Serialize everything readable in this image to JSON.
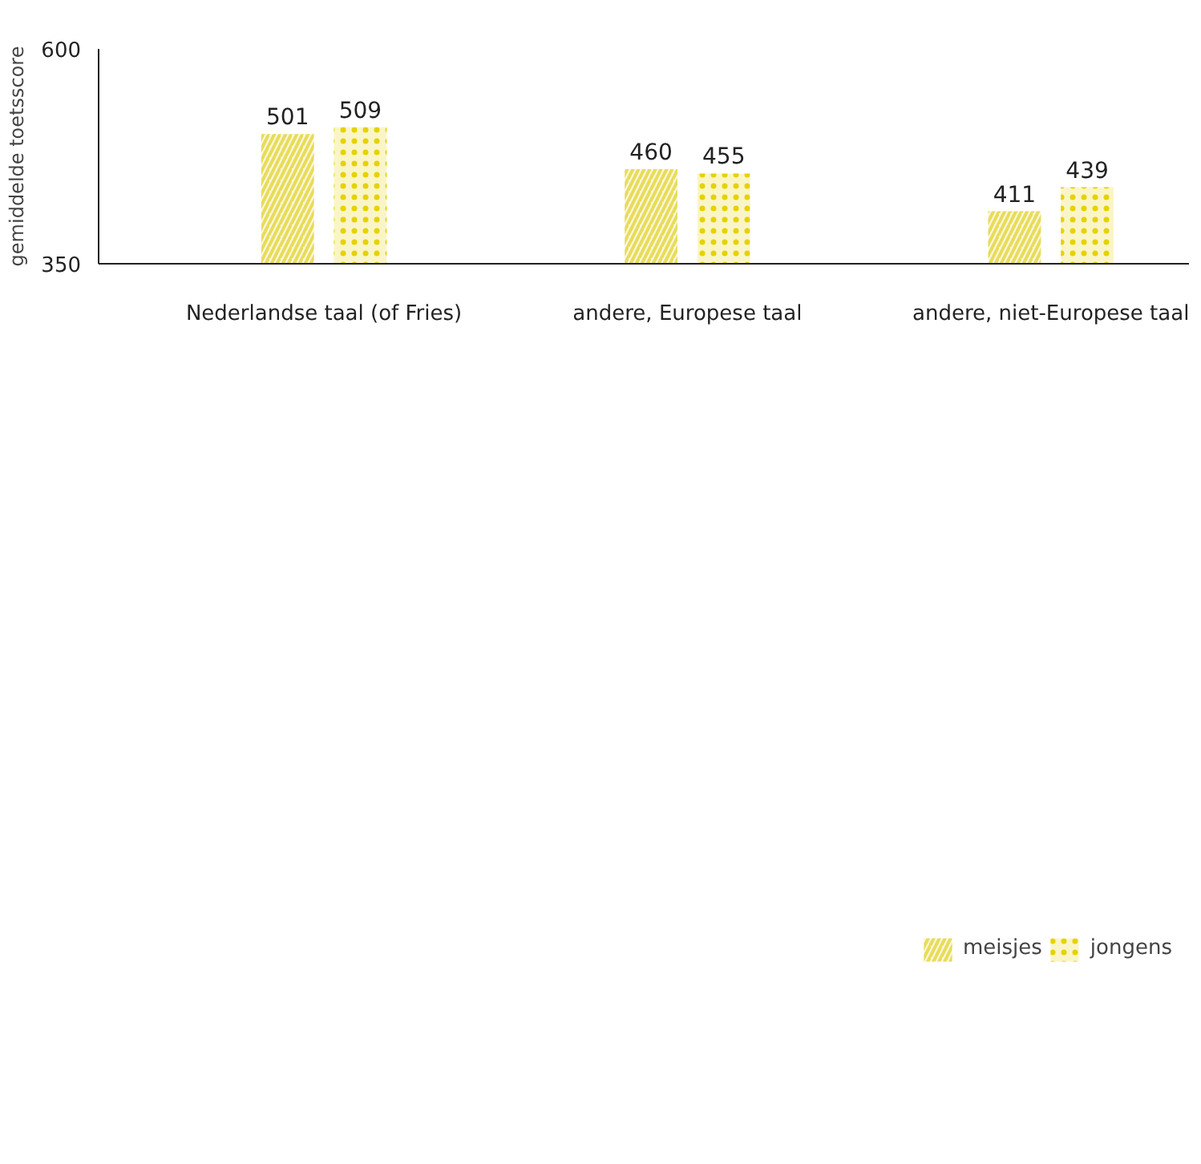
{
  "chart_data": {
    "type": "bar",
    "ylabel": "gemiddelde toetsscore",
    "categories": [
      "Nederlandse taal (of Fries)",
      "andere, Europese taal",
      "andere, niet-Europese taal"
    ],
    "series": [
      {
        "name": "meisjes",
        "color": "#e8dc5a",
        "values": [
          501,
          460,
          411
        ]
      },
      {
        "name": "jongens",
        "color": "#e6d200",
        "values": [
          509,
          455,
          439
        ]
      }
    ],
    "ylim": [
      350,
      600
    ],
    "yticks": [
      350,
      600
    ],
    "grid": false,
    "legend": "bottom right",
    "data_labels": true
  }
}
